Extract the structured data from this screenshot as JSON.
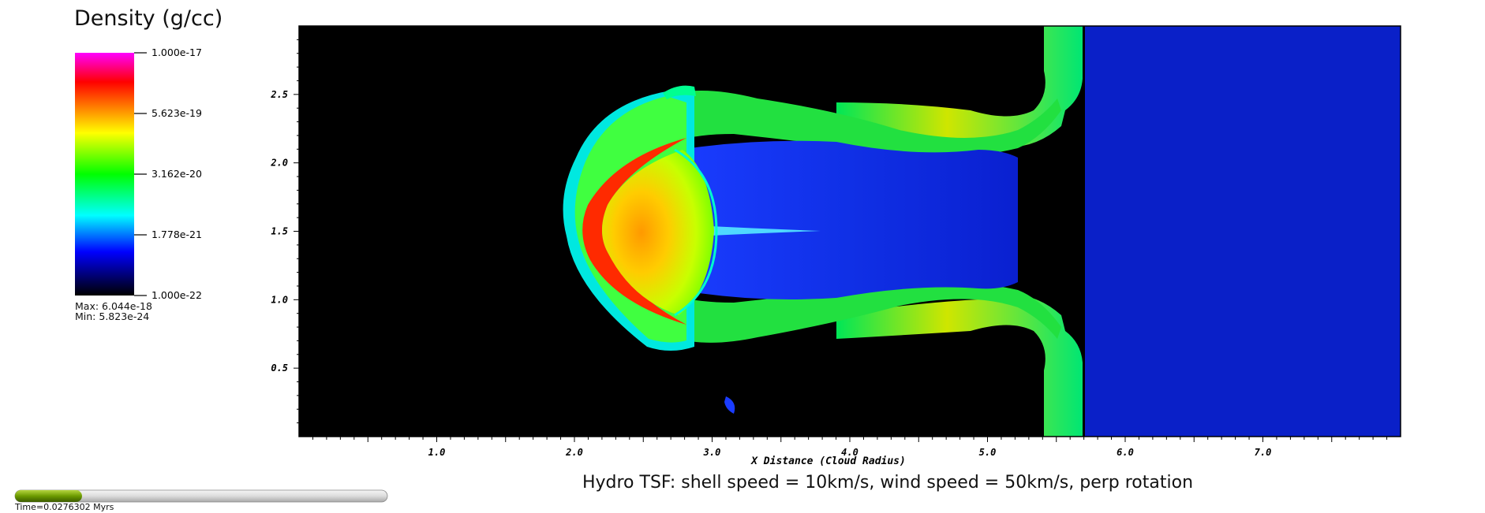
{
  "legend": {
    "title": "Density (g/cc)",
    "ticks": [
      "1.000e-17",
      "5.623e-19",
      "3.162e-20",
      "1.778e-21",
      "1.000e-22"
    ],
    "max_label": "Max:  6.044e-18",
    "min_label": "Min:  5.823e-24",
    "colors": [
      "#ff00ff",
      "#ff0000",
      "#ffff00",
      "#00ff00",
      "#00ffff",
      "#0000ff",
      "#000000"
    ]
  },
  "time": {
    "label": "Time=0.0276302 Myrs",
    "fraction": 0.18,
    "fill_color": "#6b9a00"
  },
  "chart_data": {
    "type": "heatmap",
    "title": "Hydro TSF: shell speed = 10km/s, wind speed = 50km/s, perp rotation",
    "xlabel": "X Distance (Cloud Radius)",
    "ylabel": "",
    "xlim": [
      0,
      8.0
    ],
    "ylim": [
      0,
      3.0
    ],
    "x_ticks": [
      "1.0",
      "2.0",
      "3.0",
      "4.0",
      "5.0",
      "6.0",
      "7.0"
    ],
    "y_ticks": [
      "0.5",
      "1.0",
      "1.5",
      "2.0",
      "2.5"
    ],
    "colorbar": {
      "min": 1e-22,
      "max": 1e-17,
      "scale": "log"
    },
    "features": [
      {
        "name": "cloud-core",
        "x_center": 2.55,
        "y_center": 1.5,
        "radius": 0.6
      },
      {
        "name": "bow-shell",
        "x_center": 2.9,
        "y_center": 1.5,
        "radius": 0.95
      },
      {
        "name": "wind-front",
        "x_left": 5.4,
        "x_right": 5.75
      },
      {
        "name": "ambient-wind",
        "x_from": 5.75,
        "x_to": 8.0
      }
    ]
  }
}
